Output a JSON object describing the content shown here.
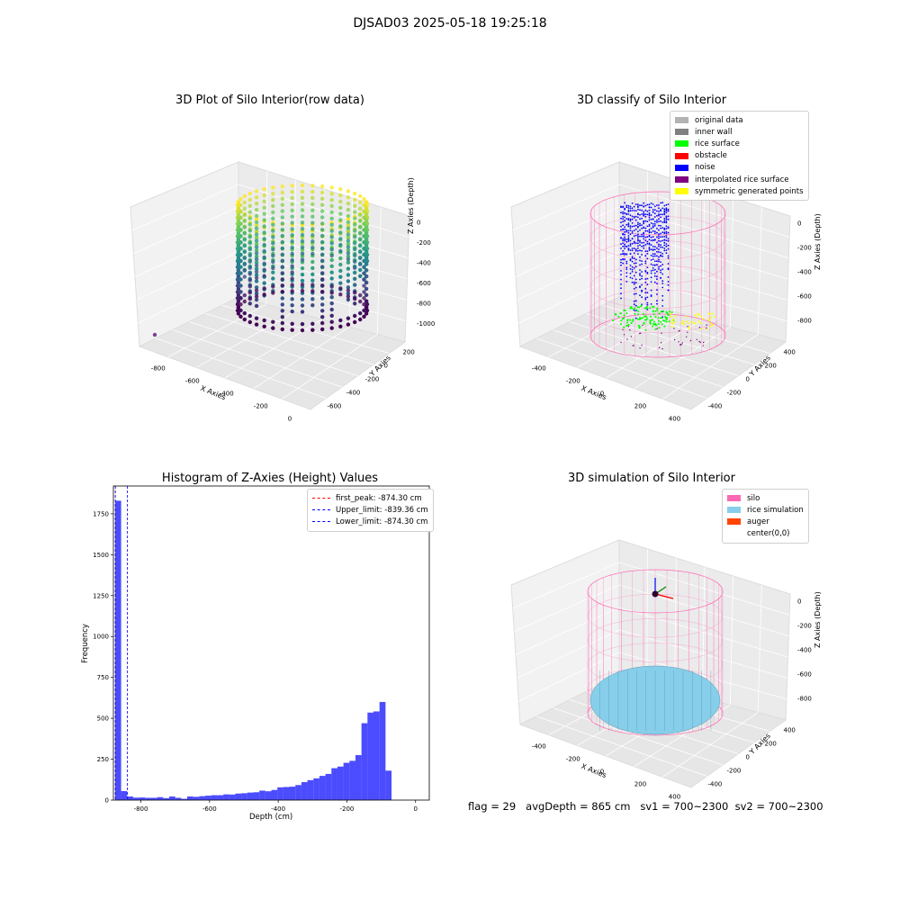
{
  "suptitle": "DJSAD03 2025-05-18 19:25:18",
  "panels": {
    "raw": {
      "title": "3D Plot of Silo Interior(row data)",
      "xlabel": "X Axies",
      "ylabel": "Y Axies",
      "zlabel": "Z Axies (Depth)",
      "xticks": [
        "-800",
        "-600",
        "-400",
        "-200",
        "0"
      ],
      "yticks": [
        "200",
        "0",
        "-200",
        "-400",
        "-600"
      ],
      "zticks": [
        "0",
        "-200",
        "-400",
        "-600",
        "-800",
        "-1000"
      ]
    },
    "classify": {
      "title": "3D classify of Silo Interior",
      "xlabel": "X Axies",
      "ylabel": "Y Axies",
      "zlabel": "Z Axies (Depth)",
      "xticks": [
        "-400",
        "-200",
        "0",
        "200",
        "400"
      ],
      "yticks": [
        "400",
        "200",
        "0",
        "-200",
        "-400"
      ],
      "zticks": [
        "0",
        "-200",
        "-400",
        "-600",
        "-800"
      ],
      "legend": [
        {
          "label": "original data",
          "color": "#b3b3b3"
        },
        {
          "label": "inner wall",
          "color": "#808080"
        },
        {
          "label": "rice surface",
          "color": "#00ff00"
        },
        {
          "label": "obstacle",
          "color": "#ff0000"
        },
        {
          "label": "noise",
          "color": "#0000ff"
        },
        {
          "label": "interpolated rice surface",
          "color": "#800080"
        },
        {
          "label": "symmetric generated points",
          "color": "#ffff00"
        }
      ]
    },
    "simulation": {
      "title": "3D simulation of Silo Interior",
      "xlabel": "X Axies",
      "ylabel": "Y Axies",
      "zlabel": "Z Axies (Depth)",
      "xticks": [
        "-400",
        "-200",
        "0",
        "200",
        "400"
      ],
      "yticks": [
        "400",
        "200",
        "0",
        "-200",
        "-400"
      ],
      "zticks": [
        "0",
        "-200",
        "-400",
        "-600",
        "-800"
      ],
      "legend": [
        {
          "label": "silo",
          "color": "#ff69b4"
        },
        {
          "label": "rice simulation",
          "color": "#87ceeb"
        },
        {
          "label": "auger",
          "color": "#ff4500"
        },
        {
          "label": "center(0,0)",
          "color": "#ffffff"
        }
      ]
    }
  },
  "footer": {
    "flag": "flag = 29",
    "avg_depth": "avgDepth = 865 cm",
    "sv1": "sv1 = 700~2300",
    "sv2": "sv2 = 700~2300"
  },
  "chart_data": [
    {
      "type": "bar",
      "title": "Histogram of Z-Axies (Height) Values",
      "xlabel": "Depth (cm)",
      "ylabel": "Frequency",
      "xlim": [
        -880,
        40
      ],
      "ylim": [
        0,
        1920
      ],
      "bar_color": "#0000ff",
      "x_start": -875,
      "bin_width": 17.5,
      "values": [
        1830,
        55,
        22,
        15,
        16,
        14,
        14,
        18,
        12,
        22,
        14,
        8,
        22,
        20,
        24,
        27,
        30,
        30,
        35,
        34,
        40,
        42,
        46,
        48,
        58,
        54,
        62,
        78,
        80,
        82,
        92,
        110,
        122,
        133,
        148,
        160,
        195,
        205,
        228,
        240,
        275,
        470,
        535,
        542,
        600,
        180
      ],
      "xticks": [
        -800,
        -600,
        -400,
        -200,
        0
      ],
      "yticks": [
        0,
        250,
        500,
        750,
        1000,
        1250,
        1500,
        1750
      ],
      "vlines": [
        {
          "x": -874.3,
          "color": "#ff0000",
          "label": "first_peak: -874.30 cm"
        },
        {
          "x": -839.36,
          "color": "#0000ff",
          "label": "Upper_limit: -839.36 cm"
        },
        {
          "x": -874.3,
          "color": "#0000ff",
          "label": "Lower_limit: -874.30 cm"
        }
      ]
    }
  ]
}
